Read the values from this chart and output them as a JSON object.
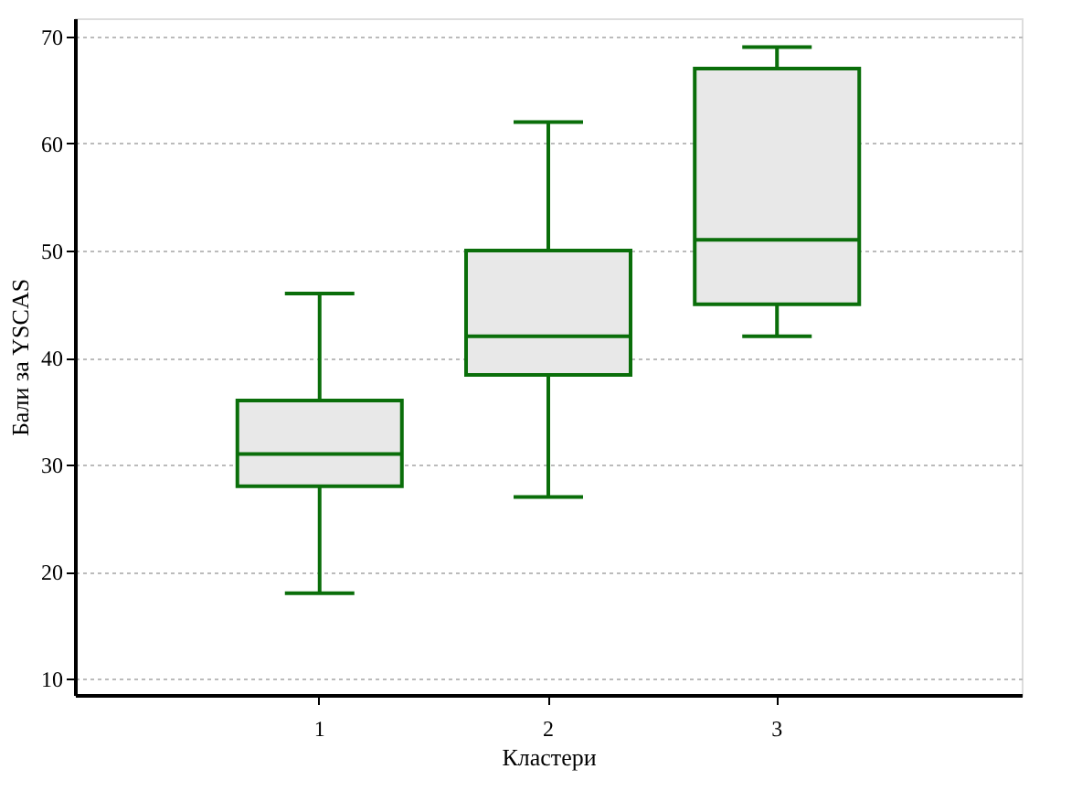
{
  "chart_data": {
    "type": "box",
    "xlabel": "Кластери",
    "ylabel": "Бали за YSCAS",
    "categories": [
      "1",
      "2",
      "3"
    ],
    "boxes": [
      {
        "low": 18,
        "q1": 28,
        "median": 31,
        "q3": 36,
        "high": 46
      },
      {
        "low": 27,
        "q1": 38.4,
        "median": 42,
        "q3": 50,
        "high": 62
      },
      {
        "low": 42,
        "q1": 45,
        "median": 51,
        "q3": 67,
        "high": 69
      }
    ],
    "color": "#0a6e0a",
    "ylim": [
      8.5,
      71.7
    ],
    "yticks": [
      10,
      20,
      30,
      40,
      50,
      60,
      70
    ],
    "grid": "y"
  }
}
